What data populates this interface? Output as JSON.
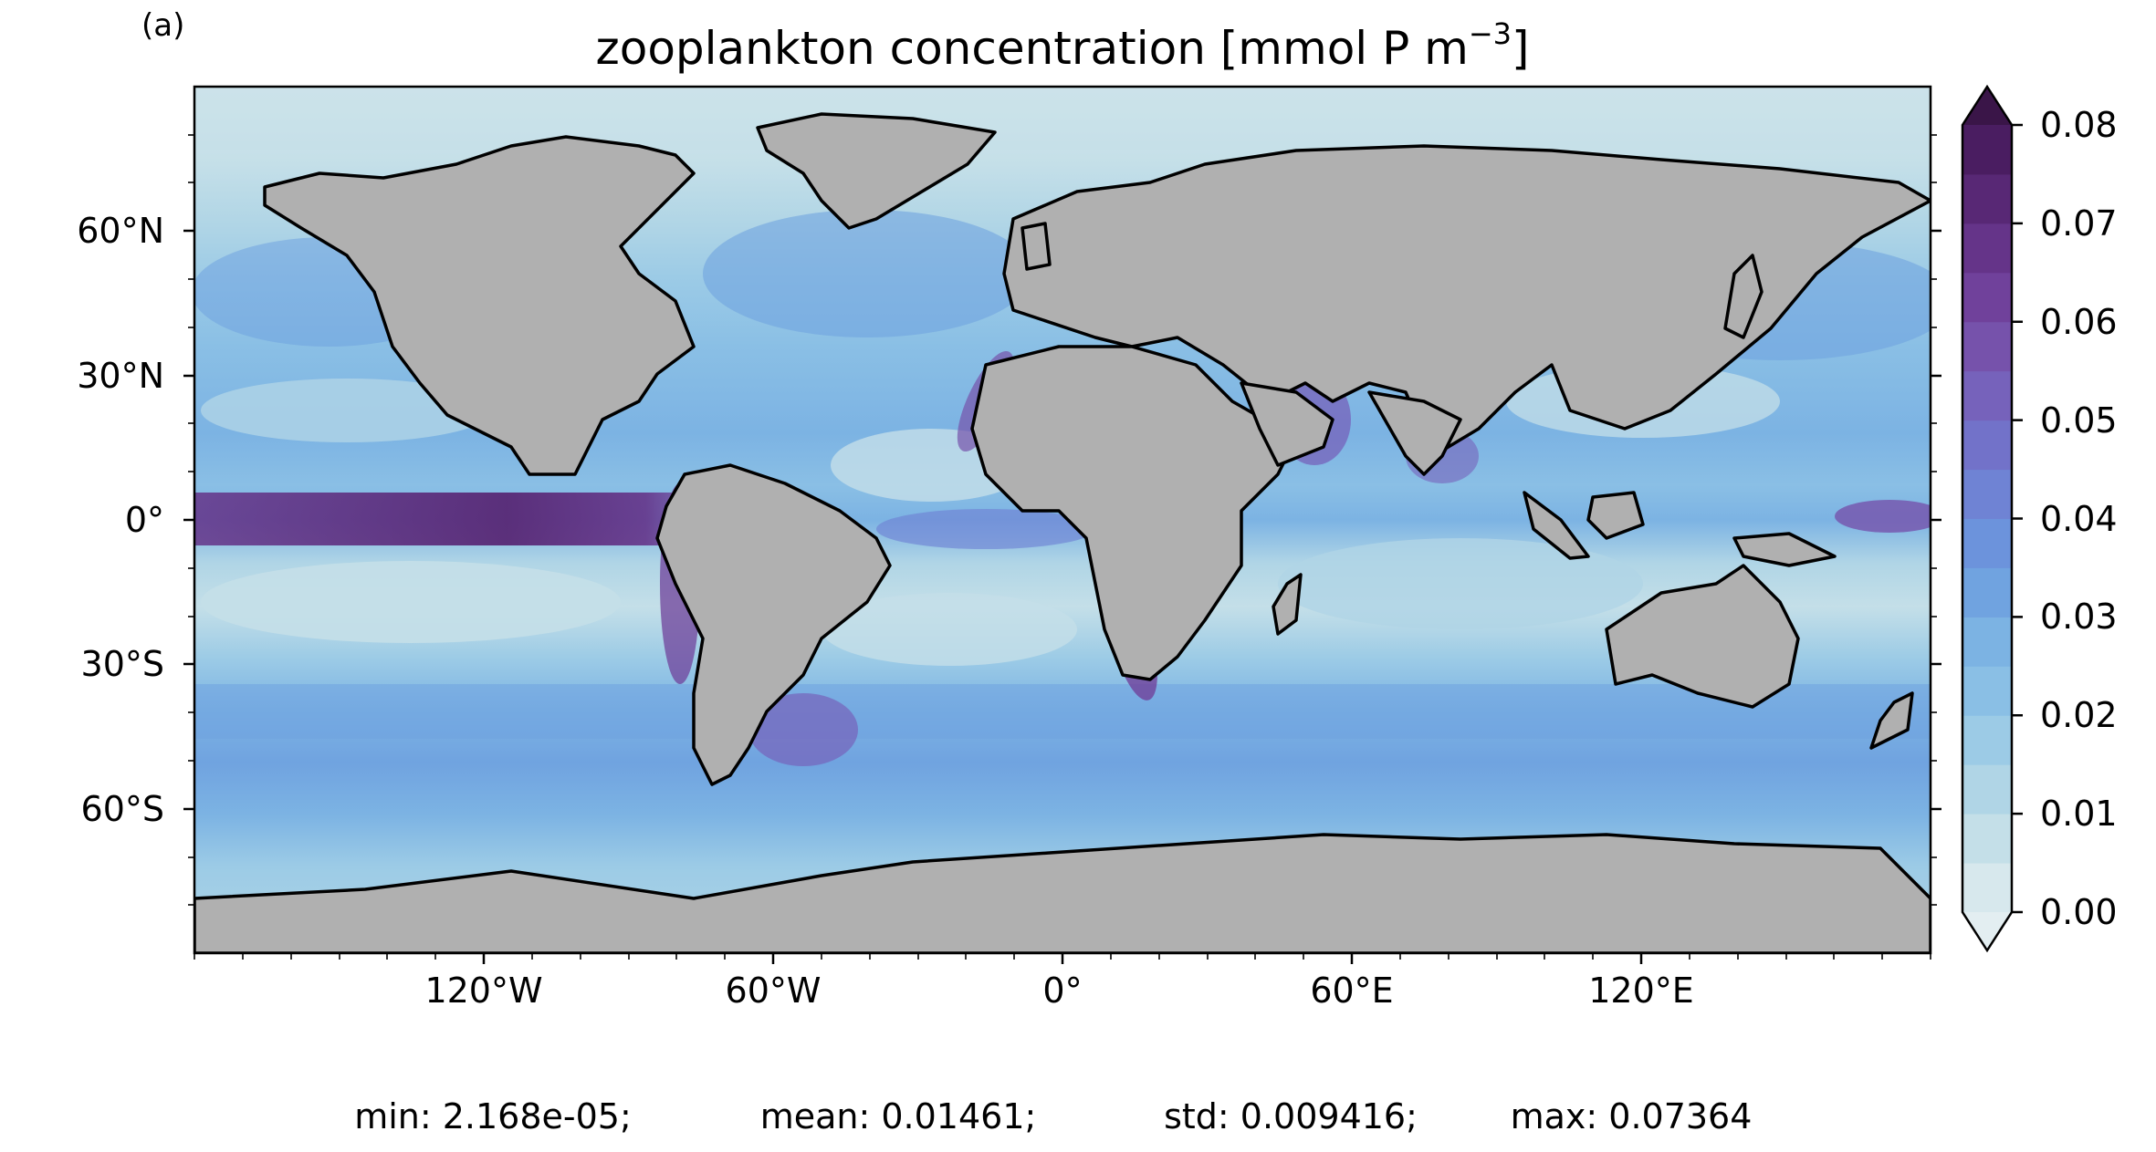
{
  "panel_label": "(a)",
  "title": {
    "main": "zooplankton concentration [mmol P m",
    "sup": "−3",
    "close": "]"
  },
  "map": {
    "projection": "PlateCarree",
    "land_color": "#b0b0b0",
    "coastline_color": "#000000",
    "lat_ticks": [
      "60°N",
      "30°N",
      "0°",
      "30°S",
      "60°S"
    ],
    "lon_ticks": [
      "120°W",
      "60°W",
      "0°",
      "60°E",
      "120°E"
    ],
    "extent": {
      "lon": [
        -180,
        180
      ],
      "lat": [
        -90,
        90
      ]
    }
  },
  "chart_data": {
    "type": "heatmap",
    "title": "zooplankton concentration [mmol P m−3]",
    "colorbar": {
      "ticks": [
        "0.00",
        "0.01",
        "0.02",
        "0.03",
        "0.04",
        "0.05",
        "0.06",
        "0.07",
        "0.08"
      ],
      "range": [
        0.0,
        0.08
      ],
      "levels": 16,
      "extend": "both",
      "colors": [
        "#d7e8ed",
        "#c4dfe8",
        "#b0d5e6",
        "#9ccbe6",
        "#8abfe5",
        "#7cb3e3",
        "#70a3e0",
        "#6c93dc",
        "#6f83d4",
        "#7272c9",
        "#7662bb",
        "#7652ab",
        "#70419b",
        "#653489",
        "#582875",
        "#4a1d61"
      ],
      "under_color": "#e3eef1",
      "over_color": "#3a1548"
    }
  },
  "stats": {
    "min": "min: 2.168e-05;",
    "mean": "mean: 0.01461;",
    "std": "std: 0.009416;",
    "max": "max: 0.07364"
  }
}
